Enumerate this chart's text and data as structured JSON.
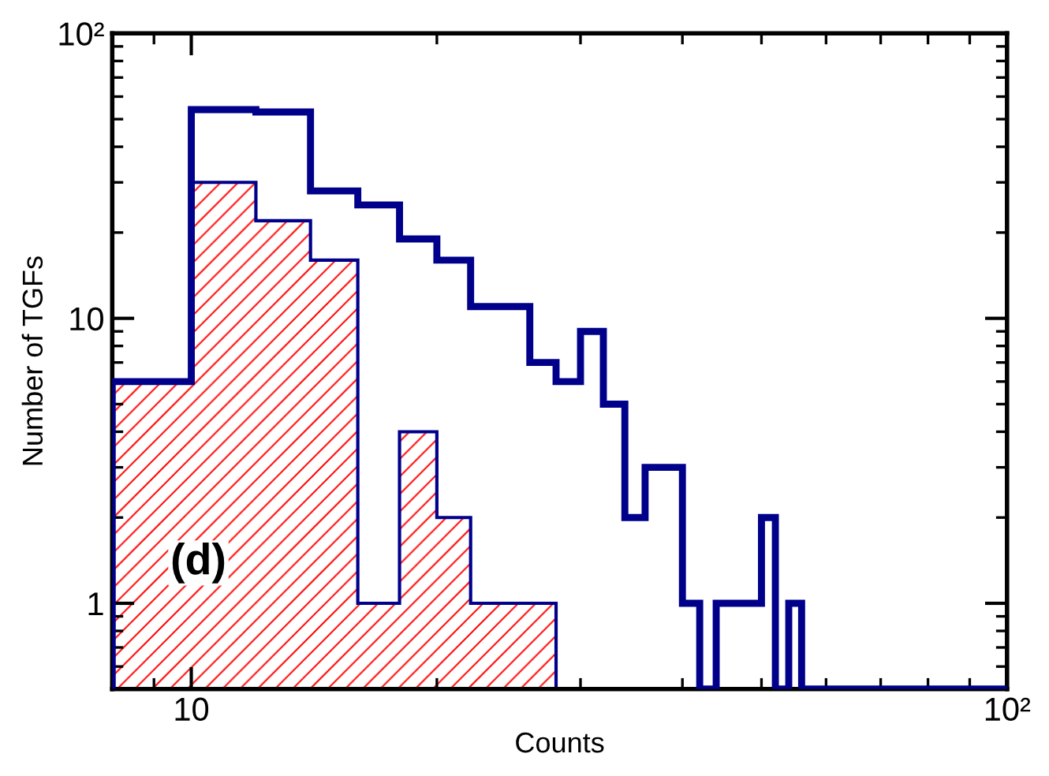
{
  "chart_data": {
    "type": "histogram",
    "xlabel": "Counts",
    "ylabel": "Number of TGFs",
    "bins": [
      8,
      10,
      12,
      14,
      16,
      18,
      20,
      22,
      24,
      26,
      28,
      30,
      32,
      34,
      36,
      38,
      40,
      42,
      44,
      46,
      48,
      50,
      52,
      54,
      56,
      100
    ],
    "series": [
      {
        "color": "#ff0000",
        "values": [
          6,
          30,
          22,
          16,
          1,
          4,
          2,
          1,
          1,
          1,
          null,
          null,
          null,
          null,
          null,
          null,
          null,
          null,
          null,
          null,
          null,
          null,
          null,
          null,
          null
        ]
      },
      {
        "color": "#00008b",
        "values": [
          6,
          54,
          53,
          28,
          25,
          19,
          16,
          11,
          11,
          7,
          6,
          9,
          5,
          2,
          3,
          3,
          1,
          null,
          1,
          1,
          1,
          2,
          null,
          1,
          null
        ]
      }
    ],
    "log": "xy",
    "xlim": [
      8,
      100
    ],
    "ylim": [
      0.5,
      100
    ],
    "xticks": [
      10,
      {
        "value": 100,
        "label": "10²"
      }
    ],
    "yticks": [
      1,
      10,
      {
        "value": 100,
        "label": "10²"
      }
    ],
    "grid": false,
    "annotations": [
      "(d)"
    ]
  }
}
